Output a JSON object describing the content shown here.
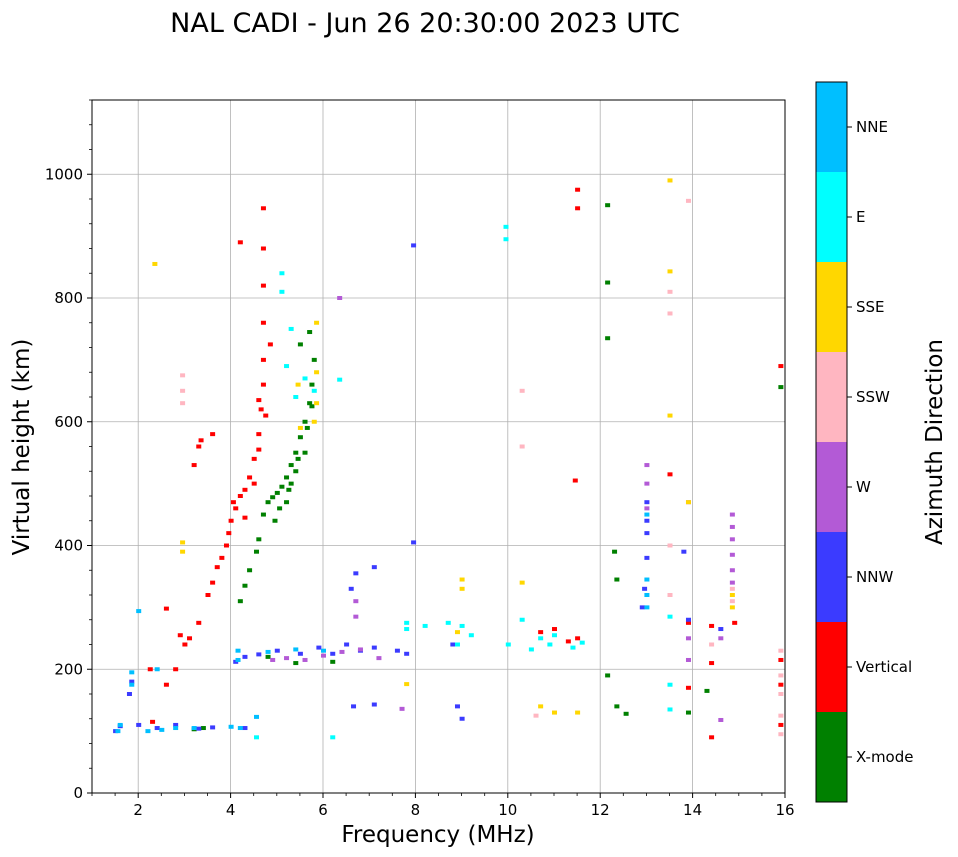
{
  "chart_data": {
    "type": "scatter",
    "title": "NAL CADI - Jun 26 20:30:00 2023 UTC",
    "xlabel": "Frequency (MHz)",
    "ylabel": "Virtual height (km)",
    "xlim": [
      1,
      16
    ],
    "ylim": [
      0,
      1120
    ],
    "xticks": [
      "2",
      "4",
      "6",
      "8",
      "10",
      "12",
      "14",
      "16"
    ],
    "yticks": [
      "0",
      "200",
      "400",
      "600",
      "800",
      "1000"
    ],
    "grid": true,
    "colorbar": {
      "label": "Azimuth Direction",
      "categories": [
        {
          "name": "X-mode",
          "color": "#008000"
        },
        {
          "name": "Vertical",
          "color": "#ff0000"
        },
        {
          "name": "NNW",
          "color": "#3b3bff"
        },
        {
          "name": "W",
          "color": "#b35ad6"
        },
        {
          "name": "SSW",
          "color": "#ffb6c1"
        },
        {
          "name": "SSE",
          "color": "#ffd700"
        },
        {
          "name": "E",
          "color": "#00ffff"
        },
        {
          "name": "NNE",
          "color": "#00bfff"
        }
      ]
    },
    "series": [
      {
        "name": "X-mode",
        "points": [
          [
            4.2,
            310
          ],
          [
            4.3,
            335
          ],
          [
            4.4,
            360
          ],
          [
            4.55,
            390
          ],
          [
            4.6,
            410
          ],
          [
            4.7,
            450
          ],
          [
            4.8,
            470
          ],
          [
            4.9,
            478
          ],
          [
            5.0,
            485
          ],
          [
            5.1,
            495
          ],
          [
            5.2,
            510
          ],
          [
            5.3,
            530
          ],
          [
            5.4,
            550
          ],
          [
            5.5,
            575
          ],
          [
            5.6,
            600
          ],
          [
            5.7,
            630
          ],
          [
            5.75,
            660
          ],
          [
            5.8,
            700
          ],
          [
            5.7,
            745
          ],
          [
            5.5,
            725
          ],
          [
            5.2,
            470
          ],
          [
            5.4,
            520
          ],
          [
            5.6,
            550
          ],
          [
            5.3,
            500
          ],
          [
            5.05,
            460
          ],
          [
            4.95,
            440
          ],
          [
            5.25,
            490
          ],
          [
            5.45,
            540
          ],
          [
            5.65,
            590
          ],
          [
            5.75,
            625
          ],
          [
            12.15,
            735
          ],
          [
            12.15,
            825
          ],
          [
            12.15,
            950
          ],
          [
            12.15,
            190
          ],
          [
            12.35,
            140
          ],
          [
            12.35,
            345
          ],
          [
            12.3,
            390
          ],
          [
            12.55,
            128
          ],
          [
            3.2,
            103
          ],
          [
            3.4,
            105
          ],
          [
            4.8,
            220
          ],
          [
            5.4,
            210
          ],
          [
            6.2,
            212
          ],
          [
            13.9,
            130
          ],
          [
            14.3,
            165
          ],
          [
            15.9,
            656
          ]
        ]
      },
      {
        "name": "Vertical",
        "points": [
          [
            3.0,
            240
          ],
          [
            3.1,
            250
          ],
          [
            3.3,
            275
          ],
          [
            3.5,
            320
          ],
          [
            3.6,
            340
          ],
          [
            3.7,
            365
          ],
          [
            3.8,
            380
          ],
          [
            3.9,
            400
          ],
          [
            3.95,
            420
          ],
          [
            4.0,
            440
          ],
          [
            4.1,
            460
          ],
          [
            4.2,
            480
          ],
          [
            4.3,
            490
          ],
          [
            4.4,
            510
          ],
          [
            4.5,
            540
          ],
          [
            4.6,
            580
          ],
          [
            4.65,
            620
          ],
          [
            4.7,
            660
          ],
          [
            4.7,
            700
          ],
          [
            4.7,
            760
          ],
          [
            4.7,
            820
          ],
          [
            4.7,
            880
          ],
          [
            4.7,
            945
          ],
          [
            4.2,
            890
          ],
          [
            3.2,
            530
          ],
          [
            3.3,
            560
          ],
          [
            3.6,
            580
          ],
          [
            4.05,
            470
          ],
          [
            4.3,
            445
          ],
          [
            4.5,
            500
          ],
          [
            4.6,
            555
          ],
          [
            4.75,
            610
          ],
          [
            2.6,
            175
          ],
          [
            2.8,
            200
          ],
          [
            2.9,
            255
          ],
          [
            2.3,
            115
          ],
          [
            2.25,
            200
          ],
          [
            2.6,
            298
          ],
          [
            4.85,
            725
          ],
          [
            4.6,
            635
          ],
          [
            3.35,
            570
          ],
          [
            10.7,
            260
          ],
          [
            11.0,
            265
          ],
          [
            11.3,
            245
          ],
          [
            11.5,
            250
          ],
          [
            11.5,
            975
          ],
          [
            11.5,
            945
          ],
          [
            11.45,
            505
          ],
          [
            13.5,
            515
          ],
          [
            13.9,
            275
          ],
          [
            13.9,
            170
          ],
          [
            14.4,
            270
          ],
          [
            14.4,
            210
          ],
          [
            14.4,
            90
          ],
          [
            14.9,
            275
          ],
          [
            15.9,
            690
          ],
          [
            15.9,
            215
          ],
          [
            15.9,
            175
          ],
          [
            15.9,
            110
          ]
        ]
      },
      {
        "name": "NNW",
        "points": [
          [
            1.5,
            100
          ],
          [
            1.6,
            108
          ],
          [
            2.0,
            110
          ],
          [
            2.4,
            105
          ],
          [
            2.8,
            110
          ],
          [
            4.1,
            212
          ],
          [
            4.3,
            220
          ],
          [
            4.6,
            224
          ],
          [
            5.0,
            230
          ],
          [
            5.5,
            225
          ],
          [
            5.9,
            235
          ],
          [
            6.2,
            225
          ],
          [
            6.5,
            240
          ],
          [
            6.8,
            230
          ],
          [
            7.1,
            235
          ],
          [
            7.6,
            230
          ],
          [
            7.8,
            225
          ],
          [
            8.8,
            240
          ],
          [
            8.9,
            140
          ],
          [
            9.0,
            120
          ],
          [
            12.9,
            300
          ],
          [
            12.95,
            330
          ],
          [
            13.0,
            380
          ],
          [
            13.0,
            420
          ],
          [
            13.0,
            440
          ],
          [
            13.0,
            470
          ],
          [
            13.8,
            390
          ],
          [
            13.9,
            280
          ],
          [
            14.6,
            265
          ],
          [
            7.95,
            885
          ],
          [
            7.95,
            405
          ],
          [
            1.85,
            180
          ],
          [
            1.8,
            160
          ],
          [
            3.3,
            104
          ],
          [
            3.6,
            106
          ],
          [
            4.3,
            105
          ],
          [
            6.65,
            140
          ],
          [
            7.1,
            143
          ],
          [
            6.6,
            330
          ],
          [
            6.7,
            355
          ],
          [
            7.1,
            365
          ]
        ]
      },
      {
        "name": "W",
        "points": [
          [
            4.9,
            215
          ],
          [
            5.2,
            218
          ],
          [
            5.6,
            215
          ],
          [
            6.0,
            222
          ],
          [
            6.4,
            228
          ],
          [
            6.8,
            232
          ],
          [
            7.2,
            218
          ],
          [
            7.7,
            136
          ],
          [
            13.0,
            460
          ],
          [
            13.0,
            500
          ],
          [
            13.0,
            530
          ],
          [
            14.85,
            340
          ],
          [
            14.85,
            360
          ],
          [
            14.85,
            385
          ],
          [
            14.85,
            410
          ],
          [
            14.85,
            430
          ],
          [
            14.85,
            450
          ],
          [
            14.6,
            250
          ],
          [
            14.6,
            118
          ],
          [
            13.9,
            215
          ],
          [
            13.9,
            250
          ],
          [
            13.9,
            470
          ],
          [
            6.35,
            800
          ],
          [
            6.7,
            310
          ],
          [
            6.7,
            285
          ]
        ]
      },
      {
        "name": "SSW",
        "points": [
          [
            2.95,
            630
          ],
          [
            2.95,
            650
          ],
          [
            2.95,
            675
          ],
          [
            13.5,
            990
          ],
          [
            13.5,
            810
          ],
          [
            13.5,
            775
          ],
          [
            13.5,
            320
          ],
          [
            13.5,
            400
          ],
          [
            13.9,
            957
          ],
          [
            14.85,
            310
          ],
          [
            14.85,
            330
          ],
          [
            15.9,
            95
          ],
          [
            15.9,
            125
          ],
          [
            15.9,
            160
          ],
          [
            15.9,
            190
          ],
          [
            15.9,
            230
          ],
          [
            10.3,
            650
          ],
          [
            10.3,
            560
          ],
          [
            10.6,
            125
          ],
          [
            11.0,
            130
          ],
          [
            14.4,
            240
          ]
        ]
      },
      {
        "name": "SSE",
        "points": [
          [
            2.95,
            390
          ],
          [
            2.95,
            405
          ],
          [
            5.5,
            590
          ],
          [
            5.8,
            600
          ],
          [
            5.85,
            630
          ],
          [
            5.85,
            680
          ],
          [
            5.85,
            760
          ],
          [
            9.0,
            345
          ],
          [
            9.0,
            330
          ],
          [
            10.3,
            340
          ],
          [
            10.7,
            140
          ],
          [
            11.0,
            130
          ],
          [
            11.5,
            130
          ],
          [
            13.5,
            990
          ],
          [
            13.5,
            843
          ],
          [
            13.5,
            610
          ],
          [
            14.85,
            300
          ],
          [
            14.85,
            320
          ],
          [
            13.9,
            470
          ],
          [
            2.35,
            855
          ],
          [
            5.45,
            660
          ],
          [
            7.8,
            176
          ],
          [
            8.9,
            260
          ]
        ]
      },
      {
        "name": "E",
        "points": [
          [
            5.2,
            690
          ],
          [
            5.3,
            750
          ],
          [
            5.4,
            640
          ],
          [
            5.6,
            670
          ],
          [
            5.8,
            650
          ],
          [
            5.1,
            840
          ],
          [
            5.1,
            810
          ],
          [
            6.35,
            668
          ],
          [
            8.7,
            275
          ],
          [
            8.9,
            240
          ],
          [
            9.2,
            255
          ],
          [
            10.0,
            240
          ],
          [
            10.5,
            232
          ],
          [
            10.9,
            240
          ],
          [
            11.4,
            235
          ],
          [
            11.6,
            243
          ],
          [
            13.5,
            135
          ],
          [
            13.5,
            175
          ],
          [
            13.5,
            285
          ],
          [
            8.2,
            270
          ],
          [
            9.0,
            270
          ],
          [
            10.3,
            280
          ],
          [
            10.7,
            250
          ],
          [
            11.0,
            255
          ],
          [
            6.2,
            90
          ],
          [
            4.55,
            90
          ],
          [
            7.8,
            265
          ],
          [
            7.8,
            275
          ],
          [
            9.95,
            915
          ],
          [
            9.95,
            895
          ]
        ]
      },
      {
        "name": "NNE",
        "points": [
          [
            1.6,
            110
          ],
          [
            1.55,
            100
          ],
          [
            1.85,
            195
          ],
          [
            1.85,
            175
          ],
          [
            2.2,
            100
          ],
          [
            2.5,
            102
          ],
          [
            2.8,
            105
          ],
          [
            3.2,
            105
          ],
          [
            4.0,
            107
          ],
          [
            4.2,
            105
          ],
          [
            4.15,
            230
          ],
          [
            4.15,
            215
          ],
          [
            4.8,
            228
          ],
          [
            5.4,
            232
          ],
          [
            6.0,
            230
          ],
          [
            13.0,
            345
          ],
          [
            13.0,
            320
          ],
          [
            13.0,
            300
          ],
          [
            13.0,
            450
          ],
          [
            4.55,
            123
          ],
          [
            2.0,
            294
          ],
          [
            2.4,
            200
          ]
        ]
      }
    ]
  }
}
